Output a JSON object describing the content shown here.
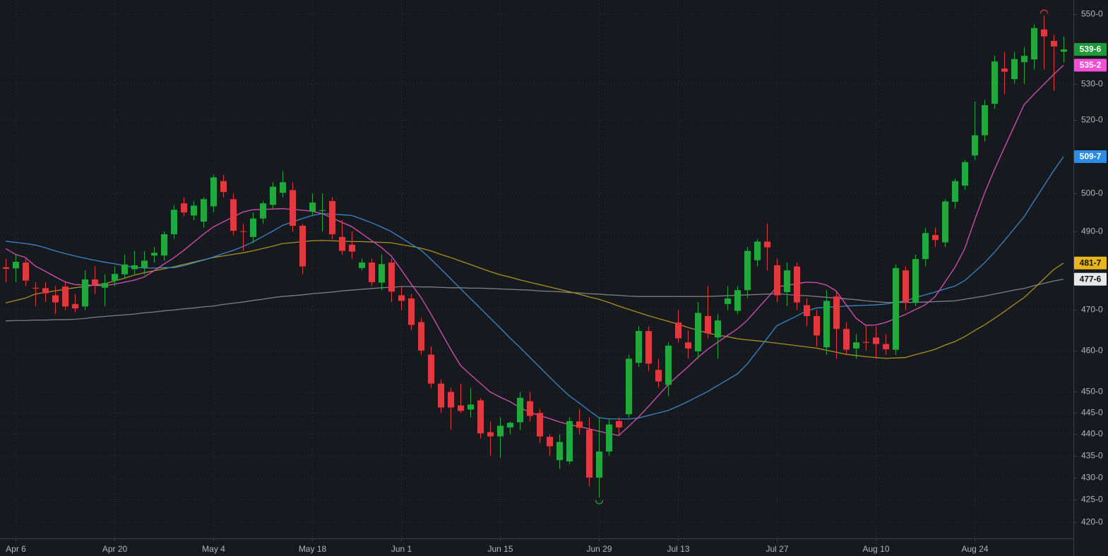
{
  "chart_data": {
    "type": "candlestick",
    "log_scale": true,
    "grid": true,
    "up_color": "#22a83c",
    "down_color": "#e0393e",
    "ylim": [
      416.5,
      554.1
    ],
    "yticks": [
      {
        "value": 420,
        "label": "420-0"
      },
      {
        "value": 425,
        "label": "425-0"
      },
      {
        "value": 430,
        "label": "430-0"
      },
      {
        "value": 435,
        "label": "435-0"
      },
      {
        "value": 440,
        "label": "440-0"
      },
      {
        "value": 445,
        "label": "445-0"
      },
      {
        "value": 450,
        "label": "450-0"
      },
      {
        "value": 460,
        "label": "460-0"
      },
      {
        "value": 470,
        "label": "470-0"
      },
      {
        "value": 490,
        "label": "490-0"
      },
      {
        "value": 500,
        "label": "500-0"
      },
      {
        "value": 520,
        "label": "520-0"
      },
      {
        "value": 530,
        "label": "530-0"
      },
      {
        "value": 550,
        "label": "550-0"
      }
    ],
    "categories": [
      null,
      "Apr 6",
      null,
      null,
      null,
      null,
      null,
      null,
      null,
      null,
      null,
      "Apr 20",
      null,
      null,
      null,
      null,
      null,
      null,
      null,
      null,
      null,
      "May 4",
      null,
      null,
      null,
      null,
      null,
      null,
      null,
      null,
      null,
      "May 18",
      null,
      null,
      null,
      null,
      null,
      null,
      null,
      null,
      "Jun 1",
      null,
      null,
      null,
      null,
      null,
      null,
      null,
      null,
      null,
      "Jun 15",
      null,
      null,
      null,
      null,
      null,
      null,
      null,
      null,
      null,
      "Jun 29",
      null,
      null,
      null,
      null,
      null,
      null,
      null,
      "Jul 13",
      null,
      null,
      null,
      null,
      null,
      null,
      null,
      null,
      null,
      "Jul 27",
      null,
      null,
      null,
      null,
      null,
      null,
      null,
      null,
      null,
      "Aug 10",
      null,
      null,
      null,
      null,
      null,
      null,
      null,
      null,
      null,
      "Aug 24",
      null,
      null,
      null,
      null,
      null,
      null,
      null,
      null,
      null
    ],
    "open": [
      480.8,
      480.5,
      482,
      475.6,
      475.5,
      473.7,
      475.9,
      471.5,
      470.9,
      477.7,
      475.6,
      477.4,
      479,
      480.3,
      480.7,
      483.8,
      483.8,
      489.3,
      497.4,
      494.2,
      492.6,
      496.6,
      503.3,
      498.5,
      490.1,
      488.6,
      493.4,
      497,
      500.2,
      500.9,
      491.5,
      495.2,
      495.4,
      498,
      488.6,
      486.6,
      480.6,
      482,
      476.9,
      482,
      473.7,
      472.9,
      467,
      459,
      452,
      450,
      446.8,
      445.8,
      448,
      440.5,
      439.5,
      441.6,
      442.8,
      447.8,
      445,
      439.4,
      434,
      433.7,
      443,
      441.1,
      430,
      436,
      443.1,
      444.7,
      457,
      464.8,
      455.3,
      451.7,
      466.9,
      462,
      459.8,
      468.5,
      463.2,
      471.5,
      469.8,
      475,
      482.6,
      487.4,
      481.3,
      474.5,
      481,
      471.2,
      468.5,
      460.8,
      473.4,
      465.3,
      460.5,
      462.1,
      463.2,
      461.6,
      460.2,
      480,
      471.9,
      482.9,
      489.1,
      487.2,
      497.8,
      502.1,
      510.2,
      515.7,
      524.4,
      534.3,
      531.3,
      536.1,
      536.9,
      545.5,
      542.2,
      539.1
    ],
    "high": [
      483,
      484,
      483,
      477,
      477,
      476,
      477,
      474,
      480,
      481,
      479,
      481,
      484,
      485,
      485,
      486,
      490,
      497,
      499,
      498,
      499,
      505,
      505,
      500,
      492,
      495,
      498,
      503,
      506,
      503,
      492,
      500,
      500,
      499,
      493,
      490,
      483,
      483,
      484,
      483,
      476,
      474,
      468,
      461,
      453,
      451,
      452,
      451,
      448.5,
      443,
      444,
      443,
      450,
      450,
      446,
      440,
      440,
      444,
      446,
      444,
      444,
      443.5,
      444,
      459,
      466,
      466,
      458,
      462,
      470,
      465,
      472,
      476,
      469,
      476,
      476,
      486,
      488,
      492,
      483,
      482,
      482,
      473,
      470,
      475,
      474.5,
      467,
      464,
      466,
      466,
      464,
      481.5,
      481,
      484,
      491,
      491,
      498.5,
      504,
      509,
      525,
      525.5,
      538,
      539,
      539,
      540.5,
      547,
      549.5,
      544,
      543.5
    ],
    "low": [
      477,
      477,
      476,
      471,
      472,
      469,
      470,
      469.5,
      470,
      474,
      471,
      476,
      478,
      479,
      479,
      482,
      482.5,
      488,
      494,
      493,
      491,
      495,
      499,
      489,
      485,
      487,
      492,
      496,
      499,
      490,
      479,
      494,
      490,
      488,
      484,
      483,
      480,
      476,
      475,
      472,
      470,
      465,
      459,
      451,
      445,
      441,
      445,
      444,
      439,
      435,
      434.5,
      440,
      441,
      443,
      438,
      435,
      432,
      433,
      440,
      428,
      425.5,
      435,
      440,
      444,
      456,
      455,
      451,
      449,
      462,
      458,
      458,
      463,
      458,
      470,
      469,
      473,
      481,
      480,
      472,
      471,
      470,
      466,
      461,
      459,
      458,
      459,
      458,
      460,
      458,
      459,
      459,
      470,
      471,
      481,
      486,
      486,
      496,
      501,
      509,
      514,
      523,
      527,
      530,
      530,
      534,
      534,
      528,
      536
    ],
    "close": [
      480.4,
      482.2,
      477.4,
      475.4,
      474.2,
      471.9,
      470.9,
      470.4,
      477.7,
      476.4,
      476.8,
      479.1,
      481.5,
      481.3,
      482.5,
      484.5,
      489.3,
      495.7,
      495,
      496.8,
      498.5,
      504.3,
      500.4,
      490.2,
      490,
      493.4,
      497.4,
      501.8,
      503,
      491.5,
      481,
      497.6,
      495.6,
      489.3,
      485,
      484.8,
      482,
      477,
      481.6,
      474.6,
      472.3,
      466.3,
      460,
      452,
      446.3,
      446.3,
      445.5,
      447,
      440.2,
      439.5,
      442,
      442.7,
      448.6,
      444.3,
      439.5,
      437.2,
      438.2,
      443.1,
      441.5,
      430,
      436,
      442.3,
      441.6,
      458,
      464.8,
      456.8,
      452.5,
      461.2,
      463,
      460.5,
      469.3,
      464.2,
      467.4,
      472.9,
      475,
      485,
      487.4,
      485.9,
      473.7,
      480,
      471.9,
      468.5,
      463.7,
      472.3,
      465.3,
      460.2,
      462,
      461.9,
      461.6,
      460.3,
      480.6,
      471.9,
      482.9,
      489.6,
      487.8,
      497.9,
      503.3,
      508.4,
      515.7,
      524,
      536.3,
      533.4,
      537,
      537.9,
      545.9,
      543.5,
      540.6,
      539.75
    ],
    "series": [
      {
        "color": "#7d7f85",
        "values": [
          467.3,
          467.4,
          467.4,
          467.5,
          467.5,
          467.6,
          467.6,
          467.7,
          467.9,
          468.2,
          468.4,
          468.6,
          468.8,
          469,
          469.3,
          469.5,
          469.8,
          470,
          470.3,
          470.5,
          470.8,
          471,
          471.4,
          471.7,
          472,
          472.4,
          472.7,
          473.1,
          473.4,
          473.6,
          473.8,
          474.1,
          474.3,
          474.5,
          474.8,
          475,
          475.2,
          475.4,
          475.6,
          475.7,
          475.9,
          475.9,
          475.8,
          475.8,
          475.7,
          475.6,
          475.6,
          475.5,
          475.5,
          475.4,
          475.3,
          475.2,
          475.1,
          475,
          474.8,
          474.7,
          474.6,
          474.4,
          474.3,
          474.1,
          474,
          473.8,
          473.7,
          473.5,
          473.4,
          473.4,
          473.4,
          473.4,
          473.4,
          473.4,
          473.4,
          473.4,
          473.5,
          473.6,
          473.7,
          473.8,
          473.9,
          474,
          474.1,
          473.9,
          473.7,
          473.6,
          473.4,
          473.2,
          473,
          472.8,
          472.6,
          472.3,
          472.1,
          471.9,
          471.9,
          471.9,
          471.9,
          472,
          472.1,
          472.2,
          472.3,
          472.7,
          473.1,
          473.5,
          474,
          474.5,
          475,
          475.4,
          476.1,
          476.7,
          477.3,
          477.75
        ]
      },
      {
        "color": "#a8901f",
        "values": [
          471.8,
          472.4,
          473,
          474,
          474.4,
          474.8,
          475.2,
          475.6,
          475.9,
          476.3,
          476.6,
          477.3,
          478,
          478.8,
          479.4,
          479.9,
          480.4,
          480.9,
          481.5,
          482.1,
          482.7,
          483.3,
          483.7,
          484.1,
          484.5,
          485,
          485.6,
          486.2,
          486.9,
          487.1,
          487.4,
          487.6,
          487.7,
          487.6,
          487.5,
          487.4,
          487.4,
          487.3,
          487.2,
          487.1,
          486.6,
          486.2,
          485.7,
          485,
          484.1,
          483.3,
          482.4,
          481.5,
          480.6,
          479.7,
          478.9,
          478.3,
          477.6,
          477,
          476.4,
          475.8,
          475.2,
          474.6,
          474,
          473.3,
          472.7,
          471.9,
          471,
          470.2,
          469.4,
          468.6,
          467.9,
          467.2,
          466.5,
          465.7,
          465,
          464.3,
          463.8,
          463.4,
          462.9,
          462.6,
          462.4,
          462.1,
          461.8,
          461.5,
          461.2,
          460.9,
          460.6,
          460.1,
          459.6,
          459.1,
          458.8,
          458.5,
          458.3,
          458.1,
          458.2,
          458.3,
          459,
          459.6,
          460.3,
          461.3,
          462.2,
          463.4,
          464.9,
          466.3,
          467.9,
          469.6,
          471.4,
          473.1,
          475.4,
          477.8,
          480.2,
          481.875
        ]
      },
      {
        "color": "#3a86cc",
        "values": [
          487.5,
          487.2,
          486.9,
          486.5,
          485.8,
          485,
          484.3,
          483.7,
          483.1,
          482.6,
          482.1,
          481.7,
          481.2,
          480.8,
          480.6,
          480.6,
          480.7,
          480.7,
          481.2,
          481.9,
          482.6,
          483.4,
          484.3,
          485.1,
          486.1,
          487.3,
          488.7,
          490.1,
          491.6,
          492.5,
          493.4,
          494.2,
          494.7,
          494.5,
          494.4,
          494.2,
          493.3,
          492.3,
          491.2,
          490,
          488.4,
          486.8,
          485.2,
          482.9,
          480.4,
          477.9,
          475.4,
          472.9,
          470.5,
          468,
          465.6,
          463.1,
          460.8,
          458.4,
          456,
          453.6,
          451.3,
          449.1,
          447.4,
          445.6,
          443.9,
          443.6,
          443.6,
          443.6,
          443.8,
          444.4,
          445,
          445.6,
          446.6,
          447.7,
          448.9,
          450.1,
          451.5,
          452.9,
          454.3,
          456.7,
          459.8,
          462.9,
          466.1,
          467.3,
          468.5,
          469.8,
          470.5,
          470.7,
          470.8,
          471,
          471.1,
          471.2,
          471.3,
          471.5,
          471.9,
          472.3,
          473.1,
          473.8,
          474.5,
          475.3,
          476,
          477.4,
          479.6,
          481.9,
          484.6,
          487.6,
          490.7,
          493.8,
          497.9,
          502,
          506.1,
          509.875
        ]
      },
      {
        "color": "#d94fb8",
        "values": [
          485.6,
          484.1,
          483.3,
          481.1,
          479.8,
          478.4,
          477.1,
          476.4,
          476.3,
          476.2,
          476.1,
          476.5,
          477,
          477.5,
          478.3,
          479.9,
          481.6,
          483.2,
          485.1,
          487.2,
          489.3,
          491.2,
          492.5,
          493.8,
          495.1,
          495.7,
          495.8,
          495.9,
          496,
          495.8,
          495.6,
          495.3,
          494.7,
          493.6,
          492.4,
          491.3,
          489.5,
          487.7,
          485.9,
          483.7,
          480.2,
          476.6,
          473.2,
          469.1,
          464.7,
          460.4,
          456.4,
          454.2,
          452.1,
          450,
          448.8,
          447.7,
          446.3,
          445.2,
          444.4,
          443.7,
          442.9,
          442.3,
          441.8,
          441.3,
          440.7,
          440.2,
          439.7,
          441.8,
          444,
          446.5,
          449.1,
          451.7,
          453.9,
          456,
          458.3,
          460.3,
          462,
          463.7,
          465.3,
          467.4,
          470.2,
          472.9,
          475.8,
          476.2,
          476.6,
          477,
          476.9,
          476.3,
          474.8,
          471.4,
          468,
          466.2,
          466.3,
          466.9,
          467.9,
          468.9,
          470.1,
          471.3,
          473.3,
          477,
          480.7,
          485.5,
          492.9,
          500,
          506.3,
          512.2,
          518.1,
          524.1,
          527,
          529.8,
          532.6,
          535.25
        ]
      }
    ],
    "price_labels": [
      {
        "value": 539.75,
        "label": "539-6",
        "color": "#1e9a38",
        "text_color": "#ffffff"
      },
      {
        "value": 535.25,
        "label": "535-2",
        "color": "#f24fd6",
        "text_color": "#ffffff"
      },
      {
        "value": 509.875,
        "label": "509-7",
        "color": "#2b8ce6",
        "text_color": "#ffffff"
      },
      {
        "value": 481.875,
        "label": "481-7",
        "color": "#e8b51c",
        "text_color": "#111111"
      },
      {
        "value": 477.75,
        "label": "477-6",
        "color": "#e8e8e8",
        "text_color": "#111111"
      }
    ]
  }
}
